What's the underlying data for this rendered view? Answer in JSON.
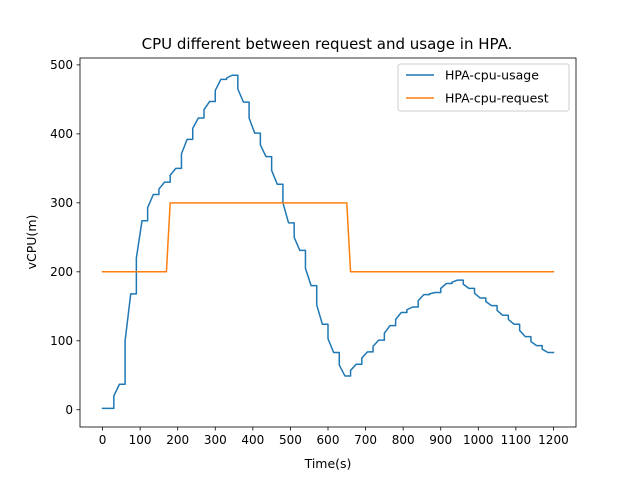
{
  "chart_data": {
    "type": "line",
    "title": "CPU different between request and usage in HPA.",
    "xlabel": "Time(s)",
    "ylabel": "vCPU(m)",
    "xlim": [
      -60,
      1260
    ],
    "ylim": [
      -25,
      510
    ],
    "xticks": [
      0,
      100,
      200,
      300,
      400,
      500,
      600,
      700,
      800,
      900,
      1000,
      1100,
      1200
    ],
    "yticks": [
      0,
      100,
      200,
      300,
      400,
      500
    ],
    "grid": false,
    "legend_position": "top-right",
    "series": [
      {
        "name": "HPA-cpu-usage",
        "color": "#1f77b4",
        "x": [
          0,
          30,
          30,
          45,
          45,
          60,
          60,
          75,
          75,
          90,
          90,
          105,
          105,
          120,
          120,
          135,
          135,
          150,
          150,
          165,
          165,
          180,
          180,
          195,
          195,
          210,
          210,
          225,
          225,
          240,
          240,
          255,
          255,
          270,
          270,
          285,
          285,
          300,
          300,
          315,
          315,
          330,
          330,
          345,
          345,
          360,
          360,
          375,
          375,
          390,
          390,
          405,
          405,
          420,
          420,
          435,
          435,
          450,
          450,
          465,
          465,
          480,
          480,
          495,
          495,
          510,
          510,
          525,
          525,
          540,
          540,
          555,
          555,
          570,
          570,
          585,
          585,
          600,
          600,
          615,
          615,
          630,
          630,
          645,
          645,
          660,
          660,
          675,
          675,
          690,
          690,
          705,
          705,
          720,
          720,
          735,
          735,
          750,
          750,
          765,
          765,
          780,
          780,
          795,
          795,
          810,
          810,
          825,
          825,
          840,
          840,
          855,
          855,
          870,
          870,
          885,
          885,
          900,
          900,
          915,
          915,
          930,
          930,
          945,
          945,
          960,
          960,
          975,
          975,
          990,
          990,
          1005,
          1005,
          1020,
          1020,
          1035,
          1035,
          1050,
          1050,
          1065,
          1065,
          1080,
          1080,
          1095,
          1095,
          1110,
          1110,
          1125,
          1125,
          1140,
          1140,
          1155,
          1155,
          1170,
          1170,
          1185,
          1185,
          1200
        ],
        "y": [
          2,
          2,
          20,
          37,
          37,
          37,
          100,
          168,
          168,
          168,
          220,
          274,
          274,
          274,
          293,
          312,
          312,
          312,
          320,
          330,
          330,
          330,
          340,
          350,
          350,
          350,
          371,
          392,
          392,
          392,
          408,
          423,
          423,
          423,
          435,
          447,
          447,
          447,
          463,
          479,
          479,
          479,
          481,
          485,
          485,
          485,
          465,
          446,
          446,
          446,
          423,
          401,
          401,
          401,
          384,
          367,
          367,
          367,
          347,
          327,
          327,
          327,
          300,
          271,
          271,
          271,
          250,
          231,
          231,
          231,
          205,
          180,
          180,
          180,
          152,
          124,
          124,
          124,
          103,
          83,
          83,
          83,
          65,
          49,
          49,
          49,
          57,
          66,
          66,
          66,
          75,
          84,
          84,
          84,
          92,
          101,
          101,
          101,
          111,
          122,
          122,
          122,
          131,
          141,
          141,
          141,
          145,
          149,
          149,
          149,
          158,
          167,
          167,
          167,
          168,
          170,
          170,
          170,
          176,
          183,
          183,
          183,
          185,
          188,
          188,
          188,
          182,
          176,
          176,
          176,
          169,
          162,
          162,
          162,
          157,
          151,
          151,
          151,
          144,
          137,
          137,
          137,
          131,
          124,
          124,
          124,
          115,
          106,
          106,
          106,
          99,
          93,
          93,
          93,
          88,
          83,
          83,
          83
        ]
      },
      {
        "name": "HPA-cpu-request",
        "color": "#ff7f0e",
        "x": [
          0,
          170,
          180,
          650,
          660,
          1200
        ],
        "y": [
          200,
          200,
          300,
          300,
          200,
          200
        ]
      }
    ]
  }
}
